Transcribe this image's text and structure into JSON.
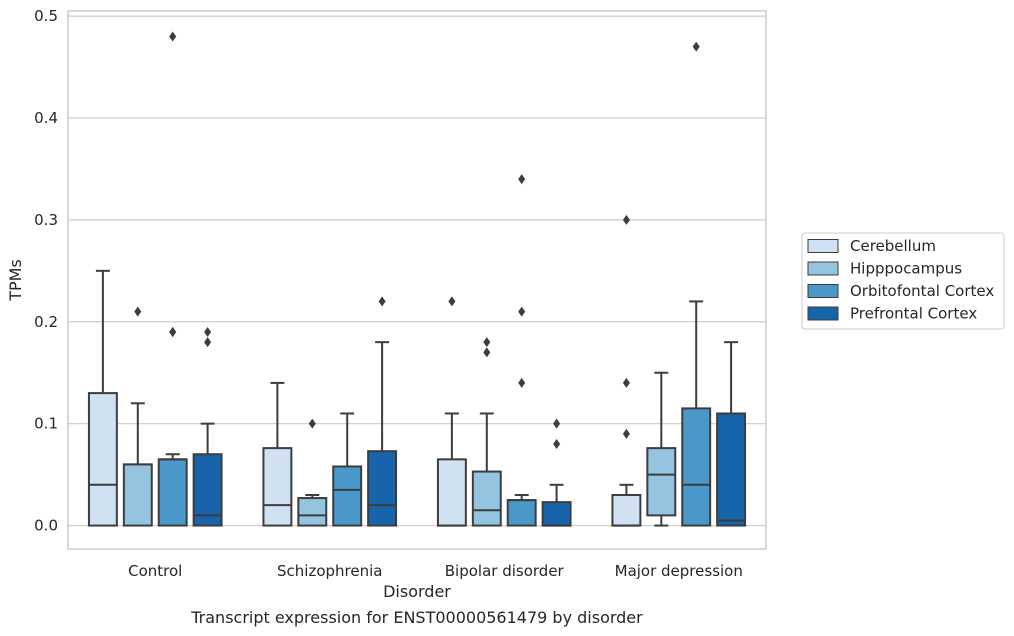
{
  "chart_data": {
    "type": "boxplot",
    "caption": "Transcript expression for ENST00000561479 by disorder",
    "xlabel": "Disorder",
    "ylabel": "TPMs",
    "ylim": [
      -0.023,
      0.505
    ],
    "yticks": [
      "0.0",
      "0.1",
      "0.2",
      "0.3",
      "0.4",
      "0.5"
    ],
    "ytick_values": [
      0.0,
      0.1,
      0.2,
      0.3,
      0.4,
      0.5
    ],
    "grid": "horizontal",
    "legend_position": "right",
    "categories": [
      "Control",
      "Schizophrenia",
      "Bipolar disorder",
      "Major depression"
    ],
    "series": [
      {
        "name": "Cerebellum",
        "color": "#d0e1f2",
        "boxes": [
          {
            "whislo": 0.0,
            "q1": 0.0,
            "med": 0.04,
            "q3": 0.13,
            "whishi": 0.25,
            "fliers": []
          },
          {
            "whislo": 0.0,
            "q1": 0.0,
            "med": 0.02,
            "q3": 0.076,
            "whishi": 0.14,
            "fliers": []
          },
          {
            "whislo": 0.0,
            "q1": 0.0,
            "med": 0.0,
            "q3": 0.065,
            "whishi": 0.11,
            "fliers": [
              0.22
            ]
          },
          {
            "whislo": 0.0,
            "q1": 0.0,
            "med": 0.0,
            "q3": 0.03,
            "whishi": 0.04,
            "fliers": [
              0.09,
              0.14,
              0.3
            ]
          }
        ]
      },
      {
        "name": "Hipppocampus",
        "color": "#94c4df",
        "boxes": [
          {
            "whislo": 0.0,
            "q1": 0.0,
            "med": 0.06,
            "q3": 0.06,
            "whishi": 0.12,
            "fliers": [
              0.21
            ]
          },
          {
            "whislo": 0.0,
            "q1": 0.0,
            "med": 0.01,
            "q3": 0.027,
            "whishi": 0.03,
            "fliers": [
              0.1
            ]
          },
          {
            "whislo": 0.0,
            "q1": 0.0,
            "med": 0.015,
            "q3": 0.053,
            "whishi": 0.11,
            "fliers": [
              0.17,
              0.18
            ]
          },
          {
            "whislo": 0.0,
            "q1": 0.01,
            "med": 0.05,
            "q3": 0.076,
            "whishi": 0.15,
            "fliers": []
          }
        ]
      },
      {
        "name": "Orbitofontal Cortex",
        "color": "#4a98c9",
        "boxes": [
          {
            "whislo": 0.0,
            "q1": 0.0,
            "med": 0.065,
            "q3": 0.065,
            "whishi": 0.07,
            "fliers": [
              0.19,
              0.19,
              0.48
            ]
          },
          {
            "whislo": 0.0,
            "q1": 0.0,
            "med": 0.035,
            "q3": 0.058,
            "whishi": 0.11,
            "fliers": []
          },
          {
            "whislo": 0.0,
            "q1": 0.0,
            "med": 0.025,
            "q3": 0.025,
            "whishi": 0.03,
            "fliers": [
              0.14,
              0.21,
              0.34
            ]
          },
          {
            "whislo": 0.0,
            "q1": 0.0,
            "med": 0.04,
            "q3": 0.115,
            "whishi": 0.22,
            "fliers": [
              0.47
            ]
          }
        ]
      },
      {
        "name": "Prefrontal Cortex",
        "color": "#1764ab",
        "boxes": [
          {
            "whislo": 0.0,
            "q1": 0.0,
            "med": 0.01,
            "q3": 0.07,
            "whishi": 0.1,
            "fliers": [
              0.18,
              0.19
            ]
          },
          {
            "whislo": 0.0,
            "q1": 0.0,
            "med": 0.02,
            "q3": 0.073,
            "whishi": 0.18,
            "fliers": [
              0.22
            ]
          },
          {
            "whislo": 0.0,
            "q1": 0.0,
            "med": 0.0,
            "q3": 0.023,
            "whishi": 0.04,
            "fliers": [
              0.08,
              0.1
            ]
          },
          {
            "whislo": 0.0,
            "q1": 0.0,
            "med": 0.005,
            "q3": 0.11,
            "whishi": 0.18,
            "fliers": []
          }
        ]
      }
    ]
  }
}
